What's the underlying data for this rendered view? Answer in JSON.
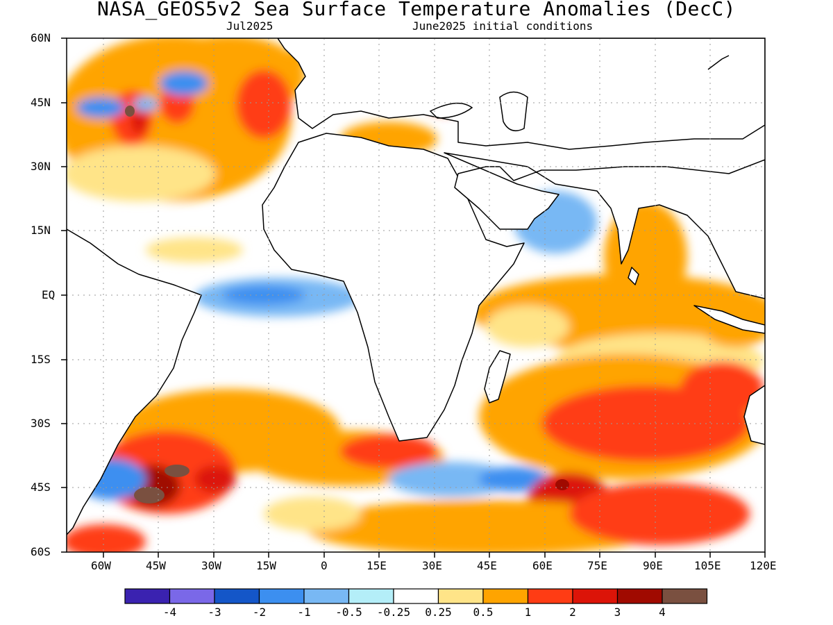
{
  "header": {
    "title": "NASA_GEOS5v2 Sea Surface Temperature Anomalies (DecC)",
    "subtitle_left": "Jul2025",
    "subtitle_right": "June2025 initial conditions"
  },
  "map": {
    "projection": "equirectangular",
    "lon_range": [
      -70,
      120
    ],
    "lat_range": [
      -60,
      60
    ],
    "gridlines": "dotted",
    "lat_tick_labels": [
      "60N",
      "45N",
      "30N",
      "15N",
      "EQ",
      "15S",
      "30S",
      "45S",
      "60S"
    ],
    "lon_tick_labels": [
      "60W",
      "45W",
      "30W",
      "15W",
      "0",
      "15E",
      "30E",
      "45E",
      "60E",
      "75E",
      "90E",
      "105E",
      "120E"
    ]
  },
  "legend": {
    "colors": [
      "#3a22b0",
      "#7a68e8",
      "#1456c8",
      "#3c8ff0",
      "#78b8f4",
      "#b4eef8",
      "#ffffff",
      "#ffe488",
      "#ffa400",
      "#ff3c14",
      "#dc1408",
      "#a00a00",
      "#7a5040"
    ],
    "labels": [
      "-4",
      "-3",
      "-2",
      "-1",
      "-0.5",
      "-0.25",
      "0.25",
      "0.5",
      "1",
      "2",
      "3",
      "4"
    ]
  }
}
